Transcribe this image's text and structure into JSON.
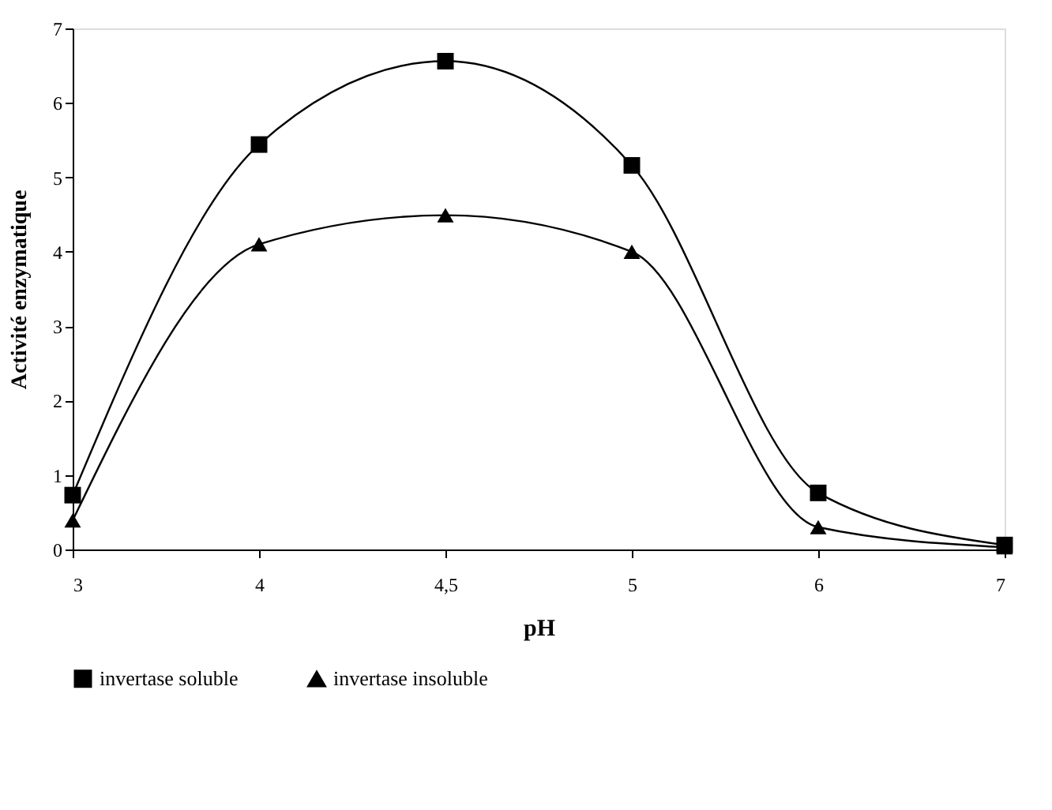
{
  "chart_data": {
    "type": "line",
    "xlabel": "pH",
    "ylabel": "Activité enzymatique",
    "categories": [
      "3",
      "4",
      "4,5",
      "5",
      "6",
      "7"
    ],
    "series": [
      {
        "name": "invertase soluble",
        "color": "#000000",
        "marker": "square",
        "values": [
          0.73,
          5.44,
          6.56,
          5.16,
          0.76,
          0.06
        ]
      },
      {
        "name": "invertase insoluble",
        "color": "#000000",
        "marker": "triangle",
        "values": [
          0.39,
          4.1,
          4.49,
          4.0,
          0.3,
          0.03
        ]
      }
    ],
    "ylim": [
      0,
      7
    ],
    "yticks": [
      0,
      1,
      2,
      3,
      4,
      5,
      6,
      7
    ],
    "grid": false,
    "legend": "bottom",
    "line_style": "solid"
  }
}
